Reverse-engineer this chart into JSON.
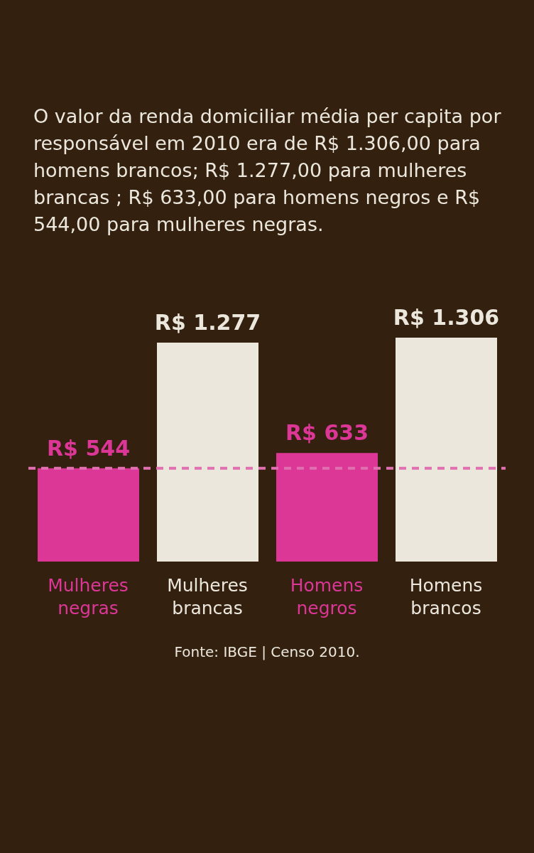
{
  "chart_data": {
    "type": "bar",
    "title": "O valor da renda domiciliar média per capita por responsável em 2010 era de R$ 1.306,00 para homens brancos; R$ 1.277,00 para mulheres brancas ; R$ 633,00 para homens negros e R$ 544,00 para mulheres negras.",
    "categories": [
      "Mulheres negras",
      "Mulheres brancas",
      "Homens negros",
      "Homens brancos"
    ],
    "values": [
      544,
      1277,
      633,
      1306
    ],
    "colors": [
      "#dc3796",
      "#ebe7dc",
      "#dc3796",
      "#ebe7dc"
    ],
    "data_labels": true,
    "value_labels": [
      "R$ 544",
      "R$ 1.277",
      "R$ 633",
      "R$ 1.306"
    ],
    "ref_lines": [
      {
        "axis": "y",
        "value": 544,
        "color": "#e070b0",
        "line_style": "dashed"
      }
    ],
    "annotations": [
      "Fonte: IBGE | Censo 2010."
    ],
    "grid": false,
    "legend": false
  }
}
